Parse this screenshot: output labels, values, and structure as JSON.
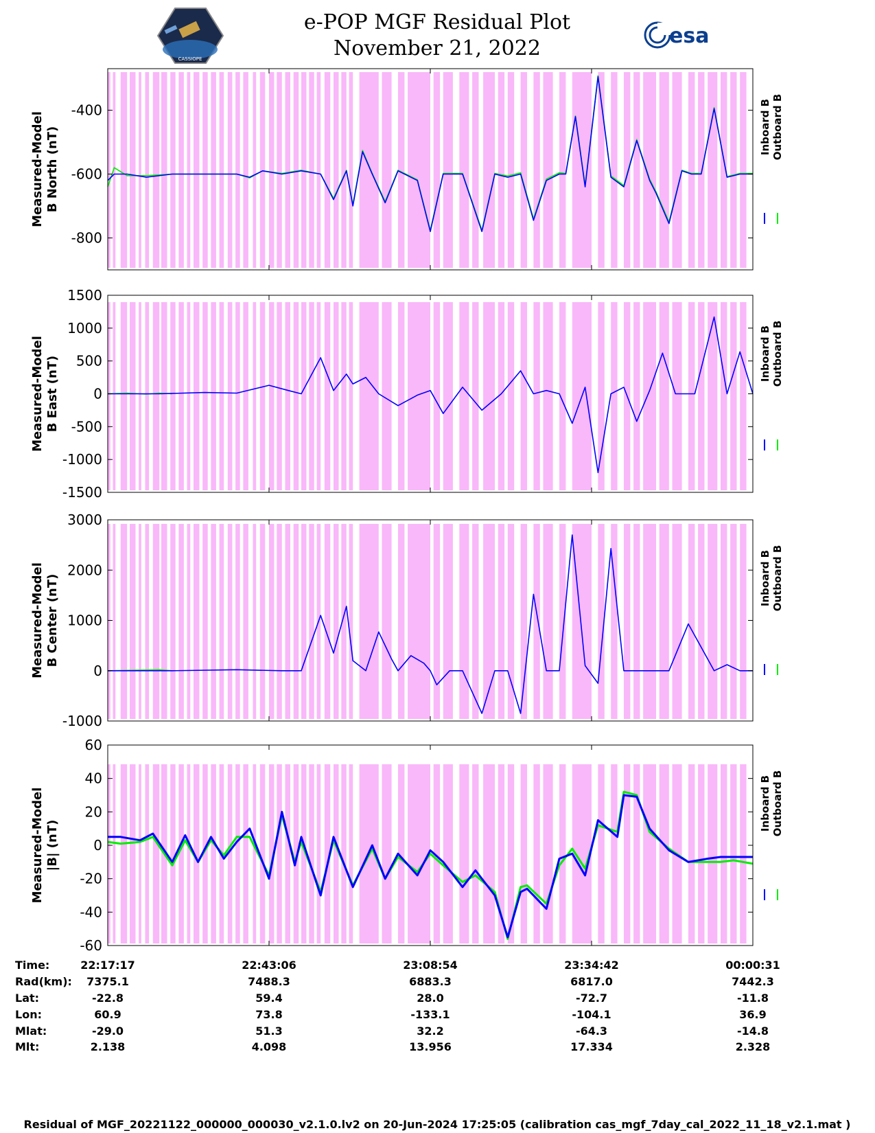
{
  "header": {
    "title": "e-POP MGF Residual Plot",
    "date": "November 21, 2022",
    "logo_left": "CASSIOPE",
    "logo_right": "esa"
  },
  "colors": {
    "inboard": "#0000ff",
    "outboard": "#00ee00",
    "shading": "#f9b8f9",
    "axis": "#000000"
  },
  "legend": {
    "inboard": "Inboard B",
    "outboard": "Outboard B"
  },
  "chart_data": [
    {
      "type": "line",
      "ylabel": [
        "Measured-Model",
        "B North (nT)"
      ],
      "ylim": [
        -900,
        -270
      ],
      "yticks": [
        -800,
        -600,
        -400
      ],
      "series": [
        {
          "name": "Inboard B",
          "color": "#0000ff",
          "x": [
            0,
            0.01,
            0.03,
            0.06,
            0.1,
            0.15,
            0.2,
            0.22,
            0.24,
            0.27,
            0.3,
            0.33,
            0.35,
            0.37,
            0.38,
            0.395,
            0.41,
            0.43,
            0.45,
            0.48,
            0.5,
            0.52,
            0.55,
            0.58,
            0.6,
            0.62,
            0.64,
            0.66,
            0.68,
            0.7,
            0.71,
            0.725,
            0.74,
            0.76,
            0.78,
            0.8,
            0.82,
            0.84,
            0.85,
            0.87,
            0.89,
            0.905,
            0.92,
            0.94,
            0.96,
            0.98,
            1.0
          ],
          "y": [
            -620,
            -600,
            -600,
            -610,
            -600,
            -600,
            -600,
            -610,
            -590,
            -600,
            -590,
            -600,
            -680,
            -590,
            -700,
            -530,
            -600,
            -690,
            -590,
            -620,
            -780,
            -600,
            -600,
            -780,
            -600,
            -610,
            -600,
            -745,
            -620,
            -600,
            -600,
            -420,
            -640,
            -295,
            -610,
            -640,
            -495,
            -620,
            -660,
            -755,
            -590,
            -600,
            -600,
            -395,
            -610,
            -600,
            -600
          ]
        },
        {
          "name": "Outboard B",
          "color": "#00ee00",
          "x": [
            0,
            0.01,
            0.03,
            0.06,
            0.1,
            0.15,
            0.2,
            0.22,
            0.24,
            0.27,
            0.3,
            0.33,
            0.35,
            0.37,
            0.38,
            0.395,
            0.41,
            0.43,
            0.45,
            0.48,
            0.5,
            0.52,
            0.55,
            0.58,
            0.6,
            0.62,
            0.64,
            0.66,
            0.68,
            0.7,
            0.71,
            0.725,
            0.74,
            0.76,
            0.78,
            0.8,
            0.82,
            0.84,
            0.85,
            0.87,
            0.89,
            0.905,
            0.92,
            0.94,
            0.96,
            0.98,
            1.0
          ],
          "y": [
            -640,
            -580,
            -605,
            -605,
            -600,
            -600,
            -600,
            -612,
            -590,
            -598,
            -588,
            -600,
            -676,
            -588,
            -696,
            -526,
            -598,
            -686,
            -588,
            -618,
            -776,
            -598,
            -598,
            -776,
            -598,
            -606,
            -596,
            -740,
            -616,
            -596,
            -598,
            -418,
            -636,
            -292,
            -606,
            -636,
            -492,
            -616,
            -656,
            -750,
            -588,
            -598,
            -598,
            -392,
            -608,
            -598,
            -598
          ]
        }
      ]
    },
    {
      "type": "line",
      "ylabel": [
        "Measured-Model",
        "B East (nT)"
      ],
      "ylim": [
        -1500,
        1500
      ],
      "yticks": [
        -1500,
        -1000,
        -500,
        0,
        500,
        1000,
        1500
      ],
      "series": [
        {
          "name": "Inboard B",
          "color": "#0000ff",
          "x": [
            0,
            0.08,
            0.15,
            0.2,
            0.25,
            0.28,
            0.3,
            0.33,
            0.35,
            0.37,
            0.38,
            0.4,
            0.42,
            0.45,
            0.48,
            0.5,
            0.52,
            0.55,
            0.58,
            0.61,
            0.64,
            0.66,
            0.68,
            0.7,
            0.72,
            0.74,
            0.76,
            0.78,
            0.8,
            0.82,
            0.84,
            0.86,
            0.88,
            0.91,
            0.94,
            0.96,
            0.98,
            1.0
          ],
          "y": [
            0,
            0,
            20,
            10,
            130,
            50,
            0,
            550,
            50,
            300,
            150,
            250,
            0,
            -180,
            -20,
            50,
            -300,
            100,
            -250,
            0,
            350,
            0,
            50,
            0,
            -450,
            100,
            -1200,
            0,
            100,
            -420,
            50,
            620,
            0,
            0,
            1170,
            0,
            640,
            0
          ]
        },
        {
          "name": "Outboard B",
          "color": "#00ee00",
          "x": [
            0,
            0.03,
            0.06,
            0.08,
            0.1
          ],
          "y": [
            0,
            10,
            -5,
            10,
            0
          ]
        }
      ]
    },
    {
      "type": "line",
      "ylabel": [
        "Measured-Model",
        "B Center (nT)"
      ],
      "ylim": [
        -1000,
        3000
      ],
      "yticks": [
        -1000,
        0,
        1000,
        2000,
        3000
      ],
      "series": [
        {
          "name": "Inboard B",
          "color": "#0000ff",
          "x": [
            0,
            0.1,
            0.2,
            0.27,
            0.3,
            0.33,
            0.35,
            0.37,
            0.38,
            0.4,
            0.42,
            0.44,
            0.45,
            0.47,
            0.49,
            0.5,
            0.51,
            0.53,
            0.55,
            0.58,
            0.6,
            0.62,
            0.64,
            0.66,
            0.68,
            0.7,
            0.72,
            0.74,
            0.76,
            0.78,
            0.8,
            0.82,
            0.84,
            0.87,
            0.9,
            0.94,
            0.96,
            0.98,
            1.0
          ],
          "y": [
            0,
            0,
            20,
            0,
            0,
            1100,
            350,
            1280,
            200,
            0,
            770,
            230,
            0,
            300,
            150,
            0,
            -280,
            0,
            0,
            -850,
            0,
            0,
            -850,
            1520,
            0,
            0,
            2700,
            100,
            -250,
            2430,
            0,
            0,
            0,
            0,
            930,
            0,
            120,
            0,
            0
          ]
        },
        {
          "name": "Outboard B",
          "color": "#00ee00",
          "x": [
            0,
            0.04,
            0.08,
            0.1
          ],
          "y": [
            0,
            10,
            20,
            0
          ]
        }
      ]
    },
    {
      "type": "line",
      "ylabel": [
        "Measured-Model",
        "|B| (nT)"
      ],
      "ylim": [
        -60,
        60
      ],
      "yticks": [
        -60,
        -40,
        -20,
        0,
        20,
        40,
        60
      ],
      "series": [
        {
          "name": "Inboard B",
          "color": "#0000ff",
          "x": [
            0,
            0.02,
            0.05,
            0.07,
            0.1,
            0.12,
            0.14,
            0.16,
            0.18,
            0.2,
            0.22,
            0.25,
            0.27,
            0.29,
            0.3,
            0.33,
            0.35,
            0.38,
            0.41,
            0.43,
            0.45,
            0.48,
            0.5,
            0.52,
            0.55,
            0.57,
            0.6,
            0.62,
            0.64,
            0.65,
            0.68,
            0.7,
            0.72,
            0.74,
            0.76,
            0.79,
            0.8,
            0.82,
            0.84,
            0.87,
            0.9,
            0.93,
            0.95,
            0.97,
            1.0
          ],
          "y": [
            5,
            5,
            3,
            7,
            -10,
            6,
            -10,
            5,
            -8,
            2,
            10,
            -20,
            20,
            -12,
            5,
            -30,
            5,
            -25,
            0,
            -20,
            -5,
            -18,
            -3,
            -10,
            -25,
            -15,
            -30,
            -55,
            -28,
            -26,
            -38,
            -8,
            -5,
            -18,
            15,
            5,
            30,
            29,
            10,
            -3,
            -10,
            -8,
            -7,
            -7,
            -7
          ]
        },
        {
          "name": "Outboard B",
          "color": "#00ee00",
          "x": [
            0,
            0.02,
            0.05,
            0.07,
            0.1,
            0.12,
            0.14,
            0.16,
            0.18,
            0.2,
            0.22,
            0.25,
            0.27,
            0.29,
            0.3,
            0.33,
            0.35,
            0.38,
            0.41,
            0.43,
            0.45,
            0.48,
            0.5,
            0.52,
            0.55,
            0.57,
            0.6,
            0.62,
            0.64,
            0.65,
            0.68,
            0.7,
            0.72,
            0.74,
            0.76,
            0.79,
            0.8,
            0.82,
            0.84,
            0.87,
            0.9,
            0.93,
            0.95,
            0.97,
            1.0
          ],
          "y": [
            2,
            1,
            2,
            5,
            -12,
            3,
            -10,
            3,
            -6,
            5,
            5,
            -18,
            18,
            -10,
            2,
            -28,
            3,
            -24,
            -2,
            -20,
            -7,
            -16,
            -5,
            -12,
            -22,
            -18,
            -28,
            -56,
            -25,
            -24,
            -35,
            -12,
            -2,
            -14,
            12,
            8,
            32,
            30,
            8,
            -2,
            -10,
            -10,
            -10,
            -9,
            -11
          ]
        }
      ]
    }
  ],
  "shading_intervals": [
    [
      0.0,
      0.004
    ],
    [
      0.008,
      0.012
    ],
    [
      0.02,
      0.03
    ],
    [
      0.034,
      0.043
    ],
    [
      0.048,
      0.052
    ],
    [
      0.058,
      0.064
    ],
    [
      0.07,
      0.08
    ],
    [
      0.083,
      0.092
    ],
    [
      0.097,
      0.105
    ],
    [
      0.11,
      0.118
    ],
    [
      0.123,
      0.128
    ],
    [
      0.133,
      0.142
    ],
    [
      0.147,
      0.155
    ],
    [
      0.16,
      0.168
    ],
    [
      0.173,
      0.18
    ],
    [
      0.186,
      0.193
    ],
    [
      0.198,
      0.205
    ],
    [
      0.21,
      0.218
    ],
    [
      0.225,
      0.23
    ],
    [
      0.236,
      0.244
    ],
    [
      0.25,
      0.258
    ],
    [
      0.262,
      0.27
    ],
    [
      0.275,
      0.283
    ],
    [
      0.288,
      0.296
    ],
    [
      0.3,
      0.308
    ],
    [
      0.312,
      0.32
    ],
    [
      0.324,
      0.33
    ],
    [
      0.336,
      0.345
    ],
    [
      0.35,
      0.358
    ],
    [
      0.362,
      0.37
    ],
    [
      0.374,
      0.38
    ],
    [
      0.39,
      0.42
    ],
    [
      0.425,
      0.44
    ],
    [
      0.45,
      0.46
    ],
    [
      0.465,
      0.5
    ],
    [
      0.505,
      0.515
    ],
    [
      0.52,
      0.535
    ],
    [
      0.545,
      0.56
    ],
    [
      0.565,
      0.575
    ],
    [
      0.582,
      0.6
    ],
    [
      0.605,
      0.615
    ],
    [
      0.62,
      0.63
    ],
    [
      0.64,
      0.65
    ],
    [
      0.66,
      0.67
    ],
    [
      0.675,
      0.69
    ],
    [
      0.7,
      0.71
    ],
    [
      0.72,
      0.75
    ],
    [
      0.76,
      0.77
    ],
    [
      0.78,
      0.79
    ],
    [
      0.8,
      0.81
    ],
    [
      0.815,
      0.825
    ],
    [
      0.83,
      0.85
    ],
    [
      0.855,
      0.87
    ],
    [
      0.875,
      0.89
    ],
    [
      0.9,
      0.91
    ],
    [
      0.915,
      0.925
    ],
    [
      0.93,
      0.945
    ],
    [
      0.95,
      0.96
    ],
    [
      0.965,
      0.975
    ],
    [
      0.98,
      0.99
    ]
  ],
  "xticks": {
    "positions": [
      0,
      0.25,
      0.5,
      0.75,
      1.0
    ],
    "rows": [
      {
        "label": "Time:",
        "values": [
          "22:17:17",
          "22:43:06",
          "23:08:54",
          "23:34:42",
          "00:00:31"
        ]
      },
      {
        "label": "Rad(km):",
        "values": [
          "7375.1",
          "7488.3",
          "6883.3",
          "6817.0",
          "7442.3"
        ]
      },
      {
        "label": "Lat:",
        "values": [
          "-22.8",
          "59.4",
          "28.0",
          "-72.7",
          "-11.8"
        ]
      },
      {
        "label": "Lon:",
        "values": [
          "60.9",
          "73.8",
          "-133.1",
          "-104.1",
          "36.9"
        ]
      },
      {
        "label": "Mlat:",
        "values": [
          "-29.0",
          "51.3",
          "32.2",
          "-64.3",
          "-14.8"
        ]
      },
      {
        "label": "Mlt:",
        "values": [
          "2.138",
          "4.098",
          "13.956",
          "17.334",
          "2.328"
        ]
      }
    ]
  },
  "footer": "Residual of MGF_20221122_000000_000030_v2.1.0.lv2 on 20-Jun-2024 17:25:05 (calibration cas_mgf_7day_cal_2022_11_18_v2.1.mat )"
}
